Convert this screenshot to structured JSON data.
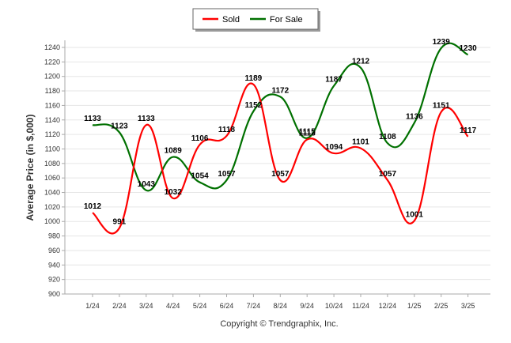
{
  "footer": "Copyright © Trendgraphix, Inc.",
  "colors": {
    "sold": "#ff0000",
    "for_sale": "#007000",
    "grid": "#e6e6e6",
    "axis": "#aaaaaa"
  },
  "chart_data": {
    "type": "line",
    "title": "",
    "xlabel": "",
    "ylabel": "Average Price (in $,000)",
    "categories": [
      "1/24",
      "2/24",
      "3/24",
      "4/24",
      "5/24",
      "6/24",
      "7/24",
      "8/24",
      "9/24",
      "10/24",
      "11/24",
      "12/24",
      "1/25",
      "2/25",
      "3/25"
    ],
    "ylim": [
      900,
      1240
    ],
    "yticks": [
      900,
      920,
      940,
      960,
      980,
      1000,
      1020,
      1040,
      1060,
      1080,
      1100,
      1120,
      1140,
      1160,
      1180,
      1200,
      1220,
      1240
    ],
    "grid": true,
    "legend_position": "top-center",
    "series": [
      {
        "name": "Sold",
        "color": "#ff0000",
        "values": [
          1012,
          991,
          1133,
          1032,
          1106,
          1118,
          1189,
          1057,
          1113,
          1094,
          1101,
          1057,
          1001,
          1151,
          1117
        ]
      },
      {
        "name": "For Sale",
        "color": "#007000",
        "values": [
          1133,
          1123,
          1043,
          1089,
          1054,
          1057,
          1152,
          1172,
          1115,
          1187,
          1212,
          1108,
          1136,
          1239,
          1230
        ]
      }
    ]
  }
}
